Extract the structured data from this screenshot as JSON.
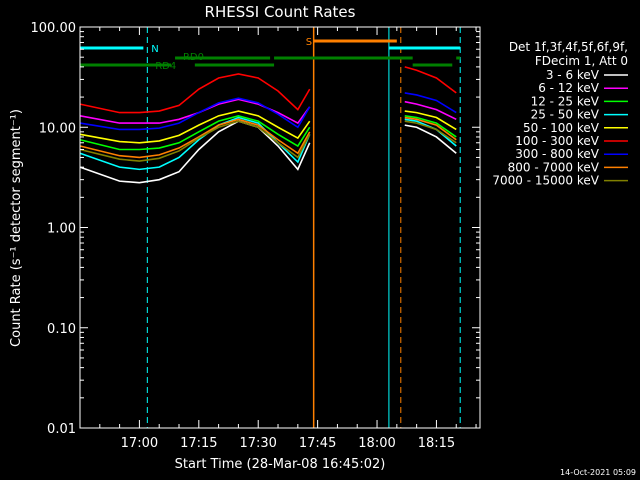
{
  "chart_data": {
    "type": "line",
    "title": "RHESSI Count Rates",
    "xlabel": "Start Time (28-Mar-08 16:45:02)",
    "ylabel": "Count Rate (s⁻¹ detector segment⁻¹)",
    "yscale": "log",
    "ylim": [
      0.01,
      100
    ],
    "xlim": [
      "16:45",
      "18:26"
    ],
    "x_ticks": [
      "17:00",
      "17:15",
      "17:30",
      "17:45",
      "18:00",
      "18:15"
    ],
    "y_ticks": [
      "0.01",
      "0.10",
      "1.00",
      "10.00",
      "100.00"
    ],
    "grid": false,
    "legend_position": "right",
    "legend_header": [
      "Det 1f,3f,4f,5f,6f,9f,",
      "FDecim 1, Att 0"
    ],
    "series": [
      {
        "name": "3 - 6 keV",
        "color": "#ffffff",
        "x": [
          "16:45",
          "16:55",
          "17:00",
          "17:05",
          "17:10",
          "17:15",
          "17:20",
          "17:25",
          "17:30",
          "17:35",
          "17:40",
          "17:43",
          "18:07",
          "18:10",
          "18:15",
          "18:20"
        ],
        "values": [
          4.0,
          2.9,
          2.8,
          3.0,
          3.6,
          6.0,
          9.0,
          11.5,
          10.0,
          6.5,
          3.8,
          7.0,
          10.5,
          10.0,
          8.0,
          5.5
        ]
      },
      {
        "name": "6 - 12 keV",
        "color": "#ff00ff",
        "x": [
          "16:45",
          "16:55",
          "17:00",
          "17:05",
          "17:10",
          "17:15",
          "17:20",
          "17:25",
          "17:30",
          "17:35",
          "17:40",
          "17:43",
          "18:07",
          "18:10",
          "18:15",
          "18:20"
        ],
        "values": [
          13.0,
          11.0,
          11.0,
          11.0,
          12.0,
          14.0,
          17.0,
          19.0,
          17.0,
          14.0,
          11.0,
          16.0,
          18.0,
          17.0,
          15.0,
          12.0
        ]
      },
      {
        "name": "12 - 25 keV",
        "color": "#00ff00",
        "x": [
          "16:45",
          "16:55",
          "17:00",
          "17:05",
          "17:10",
          "17:15",
          "17:20",
          "17:25",
          "17:30",
          "17:35",
          "17:40",
          "17:43",
          "18:07",
          "18:10",
          "18:15",
          "18:20"
        ],
        "values": [
          7.5,
          6.0,
          6.0,
          6.2,
          7.0,
          9.0,
          11.5,
          13.0,
          11.5,
          8.5,
          6.5,
          10.0,
          13.0,
          12.5,
          11.0,
          8.0
        ]
      },
      {
        "name": "25 - 50 keV",
        "color": "#00ffff",
        "x": [
          "16:45",
          "16:55",
          "17:00",
          "17:05",
          "17:10",
          "17:15",
          "17:20",
          "17:25",
          "17:30",
          "17:35",
          "17:40",
          "17:43",
          "18:07",
          "18:10",
          "18:15",
          "18:20"
        ],
        "values": [
          5.5,
          4.0,
          3.8,
          4.0,
          5.0,
          7.5,
          10.5,
          12.5,
          11.0,
          7.0,
          4.5,
          8.5,
          12.0,
          11.5,
          9.5,
          6.5
        ]
      },
      {
        "name": "50 - 100 keV",
        "color": "#ffff00",
        "x": [
          "16:45",
          "16:55",
          "17:00",
          "17:05",
          "17:10",
          "17:15",
          "17:20",
          "17:25",
          "17:30",
          "17:35",
          "17:40",
          "17:43",
          "18:07",
          "18:10",
          "18:15",
          "18:20"
        ],
        "values": [
          8.5,
          7.2,
          7.0,
          7.3,
          8.3,
          10.5,
          13.0,
          14.5,
          13.0,
          10.0,
          7.8,
          11.5,
          14.5,
          14.0,
          12.5,
          9.5
        ]
      },
      {
        "name": "100 - 300 keV",
        "color": "#ff0000",
        "x": [
          "16:45",
          "16:55",
          "17:00",
          "17:05",
          "17:10",
          "17:15",
          "17:20",
          "17:25",
          "17:30",
          "17:35",
          "17:40",
          "17:43",
          "18:07",
          "18:10",
          "18:15",
          "18:20"
        ],
        "values": [
          17.0,
          14.0,
          14.0,
          14.5,
          16.5,
          24.0,
          31.0,
          34.0,
          31.0,
          23.0,
          15.0,
          24.0,
          40.0,
          37.0,
          31.0,
          22.0
        ]
      },
      {
        "name": "300 - 800 keV",
        "color": "#0000ff",
        "x": [
          "16:45",
          "16:55",
          "17:00",
          "17:05",
          "17:10",
          "17:15",
          "17:20",
          "17:25",
          "17:30",
          "17:35",
          "17:40",
          "17:43",
          "18:07",
          "18:10",
          "18:15",
          "18:20"
        ],
        "values": [
          11.0,
          9.5,
          9.5,
          9.8,
          11.0,
          14.0,
          17.5,
          19.5,
          17.5,
          13.5,
          10.0,
          16.0,
          22.0,
          21.0,
          18.5,
          14.0
        ]
      },
      {
        "name": "800 - 7000 keV",
        "color": "#ff8000",
        "x": [
          "16:45",
          "16:55",
          "17:00",
          "17:05",
          "17:10",
          "17:15",
          "17:20",
          "17:25",
          "17:30",
          "17:35",
          "17:40",
          "17:43",
          "18:07",
          "18:10",
          "18:15",
          "18:20"
        ],
        "values": [
          6.5,
          5.2,
          5.0,
          5.3,
          6.2,
          8.0,
          10.5,
          12.0,
          10.5,
          7.5,
          5.5,
          9.0,
          12.5,
          12.0,
          10.5,
          7.5
        ]
      },
      {
        "name": "7000 - 15000 keV",
        "color": "#808000",
        "x": [
          "16:45",
          "16:55",
          "17:00",
          "17:05",
          "17:10",
          "17:15",
          "17:20",
          "17:25",
          "17:30",
          "17:35",
          "17:40",
          "17:43",
          "18:07",
          "18:10",
          "18:15",
          "18:20"
        ],
        "values": [
          6.0,
          4.8,
          4.6,
          4.9,
          5.8,
          7.8,
          10.0,
          11.5,
          10.0,
          7.0,
          5.0,
          8.5,
          11.5,
          11.0,
          9.5,
          7.0
        ]
      }
    ],
    "annotations": {
      "flag_labels": [
        {
          "text": "N",
          "color": "#00ffff"
        },
        {
          "text": "RD0",
          "color": "#008000"
        },
        {
          "text": "RD4",
          "color": "#008000"
        },
        {
          "text": "S",
          "color": "#ff8000"
        }
      ],
      "night_bars": [
        [
          "16:45",
          "17:01"
        ],
        [
          "18:03",
          "18:21"
        ]
      ],
      "saa_bar": [
        "17:44",
        "18:05"
      ],
      "decim_upper_bars": [
        [
          "17:09",
          "17:33"
        ],
        [
          "17:34",
          "18:09"
        ],
        [
          "18:20",
          "18:21"
        ]
      ],
      "decim_lower_bars": [
        [
          "16:45",
          "17:08"
        ],
        [
          "17:14",
          "17:34"
        ],
        [
          "18:09",
          "18:19"
        ]
      ],
      "vlines_cyan_dashed": [
        "17:02",
        "18:21"
      ],
      "vlines_cyan_solid": [
        "16:45",
        "18:03"
      ],
      "vline_orange_solid": "17:44",
      "vline_orange_dashed": "18:06"
    },
    "footer_timestamp": "14-Oct-2021 05:09"
  }
}
